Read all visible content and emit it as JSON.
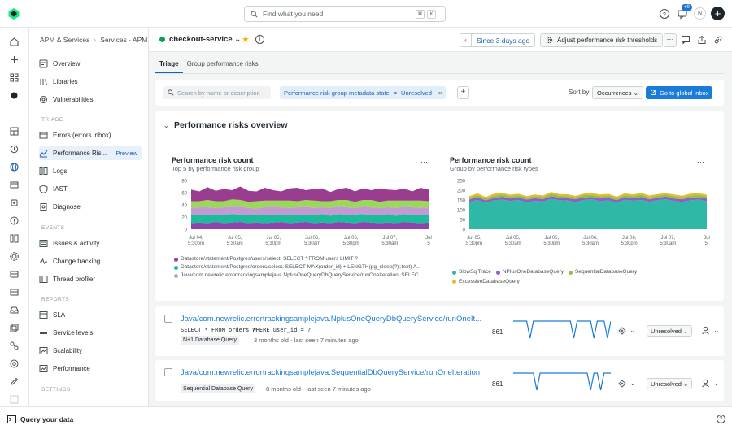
{
  "topbar": {
    "search_placeholder": "Find what you need",
    "kbd1": "⌘",
    "kbd2": "K",
    "notif_badge": "+9",
    "avatar_initial": "N"
  },
  "nav": {
    "breadcrumbs": [
      "APM & Services",
      "Services - APM"
    ],
    "items_top": [
      {
        "label": "Overview",
        "icon": "overview-icon"
      },
      {
        "label": "Libraries",
        "icon": "library-icon"
      },
      {
        "label": "Vulnerabilities",
        "icon": "vulnerability-icon"
      }
    ],
    "section_triage": "TRIAGE",
    "items_triage": [
      {
        "label": "Errors (errors inbox)",
        "icon": "errors-icon"
      },
      {
        "label": "Performance Ris...",
        "icon": "performance-icon",
        "badge": "Preview",
        "active": true
      },
      {
        "label": "Logs",
        "icon": "logs-icon"
      },
      {
        "label": "IAST",
        "icon": "iast-icon"
      },
      {
        "label": "Diagnose",
        "icon": "diagnose-icon"
      }
    ],
    "section_events": "EVENTS",
    "items_events": [
      {
        "label": "Issues & activity",
        "icon": "issues-icon"
      },
      {
        "label": "Change tracking",
        "icon": "change-icon"
      },
      {
        "label": "Thread profiler",
        "icon": "thread-icon"
      }
    ],
    "section_reports": "REPORTS",
    "items_reports": [
      {
        "label": "SLA",
        "icon": "sla-icon"
      },
      {
        "label": "Service levels",
        "icon": "service-levels-icon"
      },
      {
        "label": "Scalability",
        "icon": "scalability-icon"
      },
      {
        "label": "Performance",
        "icon": "performance-report-icon"
      }
    ],
    "section_settings": "SETTINGS"
  },
  "header": {
    "entity_name": "checkout-service ⌄",
    "time_range": "Since 3 days ago",
    "adjust_label": "Adjust performance risk thresholds",
    "more": "···"
  },
  "tabs": [
    {
      "label": "Triage",
      "active": true
    },
    {
      "label": "Group performance risks",
      "active": false
    }
  ],
  "filter": {
    "search_placeholder": "Search by name or description",
    "chip_key": "Performance risk group metadata state",
    "chip_op": "=",
    "chip_value": "Unresolved",
    "chip_remove": "×",
    "add": "+",
    "sort_label": "Sort by",
    "sort_value": "Occurrences ⌄",
    "go_button": "Go to global inbox"
  },
  "overview": {
    "chevron": "⌄",
    "title": "Performance risks overview"
  },
  "chart_data": [
    {
      "type": "area",
      "title": "Performance risk count",
      "subtitle": "Top 5 by performance risk group",
      "more": "···",
      "ylim": [
        0,
        80
      ],
      "yticks": [
        "80",
        "60",
        "40",
        "20",
        "0"
      ],
      "xticks": [
        [
          "Jul 04,",
          "5:30pm"
        ],
        [
          "Jul 05,",
          "5:30am"
        ],
        [
          "Jul 05,",
          "5:30pm"
        ],
        [
          "Jul 06,",
          "5:30am"
        ],
        [
          "Jul 06,",
          "5:30pm"
        ],
        [
          "Jul 07,",
          "5:30am"
        ],
        [
          "Jul",
          "5"
        ]
      ],
      "stacked": true,
      "series": [
        {
          "name": "Datastore/statement/Postgres/users/select, SELECT * FROM users LIMIT ?",
          "color": "#8e44ad",
          "values": [
            10,
            11,
            10,
            12,
            10,
            11,
            12,
            10,
            11,
            10,
            11,
            12,
            10,
            11,
            12,
            10,
            11,
            10,
            12,
            11,
            10,
            12,
            11,
            10,
            11,
            10,
            12,
            11,
            10,
            11
          ]
        },
        {
          "name": "Datastore/statement/Postgres/orders/select, SELECT MAX(order_id) + LENGTH(pg_sleep(?)::text) A...",
          "color": "#1abc9c",
          "values": [
            13,
            12,
            14,
            12,
            13,
            14,
            12,
            13,
            12,
            14,
            13,
            12,
            14,
            13,
            12,
            13,
            14,
            12,
            13,
            12,
            14,
            13,
            12,
            13,
            14,
            12,
            13,
            12,
            14,
            13
          ]
        },
        {
          "name": "Java/com.newrelic.errortrackingsamplejava.NplusOneQueryDbQueryService/runOneIteration, SELEC...",
          "color": "#c39bd3",
          "values": [
            12,
            13,
            12,
            11,
            13,
            12,
            13,
            12,
            11,
            12,
            13,
            12,
            11,
            12,
            13,
            12,
            11,
            13,
            12,
            13,
            11,
            12,
            13,
            12,
            11,
            13,
            12,
            13,
            11,
            12
          ]
        },
        {
          "name": "",
          "color": "#9bd85a",
          "values": [
            11,
            10,
            12,
            11,
            10,
            12,
            11,
            10,
            12,
            11,
            10,
            11,
            12,
            10,
            11,
            12,
            10,
            11,
            11,
            12,
            10,
            11,
            12,
            10,
            11,
            12,
            10,
            11,
            12,
            10
          ]
        },
        {
          "name": "",
          "color": "#9b3d8f",
          "values": [
            19,
            16,
            21,
            17,
            20,
            15,
            22,
            18,
            16,
            21,
            17,
            15,
            20,
            22,
            16,
            19,
            21,
            15,
            18,
            20,
            17,
            19,
            16,
            22,
            18,
            17,
            20,
            15,
            21,
            19
          ]
        }
      ]
    },
    {
      "type": "area",
      "title": "Performance risk count",
      "subtitle": "Group by performance risk types",
      "more": "···",
      "ylim": [
        0,
        250
      ],
      "yticks": [
        "250",
        "200",
        "150",
        "100",
        "50",
        "0"
      ],
      "xticks": [
        [
          "Jul 05,",
          "5:30pm"
        ],
        [
          "Jul 05,",
          "5:30am"
        ],
        [
          "Jul 05,",
          "5:30pm"
        ],
        [
          "Jul 06,",
          "5:30am"
        ],
        [
          "Jul 06,",
          "5:30pm"
        ],
        [
          "Jul 07,",
          "5:30am"
        ],
        [
          "Jul",
          "5:"
        ]
      ],
      "stacked": true,
      "series": [
        {
          "name": "SlowSqlTrace",
          "color": "#2fb8a6",
          "values": [
            140,
            150,
            135,
            148,
            152,
            145,
            150,
            138,
            146,
            142,
            155,
            149,
            147,
            139,
            150,
            153,
            144,
            148,
            137,
            151,
            146,
            150,
            141,
            149,
            153,
            145,
            140,
            148,
            152,
            144
          ]
        },
        {
          "name": "NPlusOneDatabaseQuery",
          "color": "#8e5fc7",
          "values": [
            12,
            14,
            13,
            12,
            15,
            13,
            12,
            14,
            13,
            12,
            14,
            13,
            12,
            15,
            13,
            12,
            14,
            13,
            12,
            14,
            13,
            15,
            12,
            13,
            14,
            12,
            13,
            15,
            12,
            14
          ]
        },
        {
          "name": "SequentialDatabaseQuery",
          "color": "#8bc34a",
          "values": [
            10,
            11,
            10,
            12,
            11,
            10,
            12,
            11,
            10,
            11,
            12,
            10,
            11,
            10,
            12,
            11,
            10,
            12,
            11,
            10,
            11,
            12,
            10,
            11,
            10,
            12,
            11,
            10,
            12,
            11
          ]
        },
        {
          "name": "ExcessiveDatabaseQuery",
          "color": "#e8b92f",
          "values": [
            8,
            9,
            7,
            10,
            8,
            9,
            8,
            7,
            9,
            8,
            10,
            8,
            9,
            7,
            8,
            9,
            10,
            8,
            7,
            9,
            8,
            9,
            10,
            7,
            8,
            9,
            8,
            10,
            9,
            8
          ]
        }
      ]
    }
  ],
  "issues": [
    {
      "title": "Java/com.newrelic.errortrackingsamplejava.NplusOneQueryDbQueryService/runOneIt...",
      "code": "SELECT * FROM orders WHERE user_id = ?",
      "tag": "N+1 Database Query",
      "meta": "3 months old - last seen 7 minutes ago",
      "count": "861",
      "status": "Unresolved ⌄",
      "spark": [
        1,
        1,
        1,
        1,
        1,
        0,
        1,
        1,
        1,
        1,
        1,
        1,
        1,
        1,
        1,
        1,
        1,
        1,
        0,
        1,
        1,
        1,
        1,
        1,
        0,
        1,
        1,
        1,
        0,
        1
      ]
    },
    {
      "title": "Java/com.newrelic.errortrackingsamplejava.SequentialDbQueryService/runOneIteration",
      "code": "",
      "tag": "Sequential Database Query",
      "meta": "8 months old - last seen 7 minutes ago",
      "count": "861",
      "status": "Unresolved ⌄",
      "spark": [
        1,
        1,
        1,
        1,
        1,
        1,
        1,
        0,
        1,
        1,
        1,
        1,
        1,
        1,
        1,
        1,
        1,
        1,
        1,
        1,
        1,
        1,
        1,
        0,
        1,
        1,
        0,
        1,
        1,
        1
      ]
    }
  ],
  "bottombar": {
    "query_label": "Query your data",
    "help": "?"
  }
}
